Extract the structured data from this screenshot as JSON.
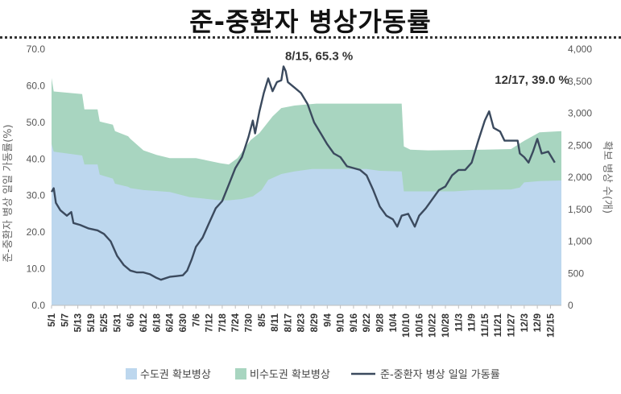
{
  "chart_data": {
    "type": "area",
    "title": "준-중환자 병상가동률",
    "ylabel_left": "준-중환자 병상 일일 가동률(%)",
    "ylabel_right": "확보 병상 수(개)",
    "ylim_left": [
      0,
      70
    ],
    "ylim_right": [
      0,
      4000
    ],
    "yticks_left": [
      "0.0",
      "10.0",
      "20.0",
      "30.0",
      "40.0",
      "50.0",
      "60.0",
      "70.0"
    ],
    "yticks_right": [
      "0",
      "500",
      "1,000",
      "1,500",
      "2,000",
      "2,500",
      "3,000",
      "3,500",
      "4,000"
    ],
    "x_start": "2021-05-01",
    "x_end": "2021-12-20",
    "x_tick_labels": [
      "5/1",
      "5/7",
      "5/13",
      "5/19",
      "5/25",
      "5/31",
      "6/6",
      "6/12",
      "6/18",
      "6/24",
      "6/30",
      "7/6",
      "7/12",
      "7/18",
      "7/24",
      "7/30",
      "8/5",
      "8/11",
      "8/17",
      "8/23",
      "8/29",
      "9/4",
      "9/10",
      "9/16",
      "9/22",
      "9/28",
      "10/4",
      "10/10",
      "10/16",
      "10/22",
      "10/28",
      "11/3",
      "11/9",
      "11/15",
      "11/21",
      "11/27",
      "12/3",
      "12/9",
      "12/15"
    ],
    "grid": false,
    "legend_position": "bottom",
    "series": [
      {
        "name": "수도권 확보병상",
        "kind": "stacked-area",
        "axis": "right",
        "color": "#bdd7ee",
        "points": [
          [
            "5/1",
            2520
          ],
          [
            "5/2",
            2400
          ],
          [
            "5/15",
            2340
          ],
          [
            "5/16",
            2200
          ],
          [
            "5/22",
            2200
          ],
          [
            "5/23",
            2040
          ],
          [
            "5/29",
            1980
          ],
          [
            "5/30",
            1900
          ],
          [
            "6/5",
            1850
          ],
          [
            "6/6",
            1830
          ],
          [
            "6/12",
            1800
          ],
          [
            "6/24",
            1770
          ],
          [
            "7/3",
            1690
          ],
          [
            "7/17",
            1640
          ],
          [
            "7/21",
            1640
          ],
          [
            "7/27",
            1660
          ],
          [
            "8/1",
            1700
          ],
          [
            "8/5",
            1800
          ],
          [
            "8/8",
            1960
          ],
          [
            "8/14",
            2050
          ],
          [
            "8/20",
            2090
          ],
          [
            "8/28",
            2130
          ],
          [
            "9/22",
            2130
          ],
          [
            "9/28",
            2100
          ],
          [
            "10/8",
            2090
          ],
          [
            "10/9",
            1780
          ],
          [
            "10/20",
            1780
          ],
          [
            "11/1",
            1780
          ],
          [
            "11/10",
            1800
          ],
          [
            "11/27",
            1810
          ],
          [
            "12/1",
            1840
          ],
          [
            "12/3",
            1920
          ],
          [
            "12/10",
            1940
          ],
          [
            "12/20",
            1950
          ]
        ]
      },
      {
        "name": "비수도권 확보병상",
        "kind": "stacked-area-top",
        "axis": "right",
        "color": "#a8d5c0",
        "points": [
          [
            "5/1",
            3550
          ],
          [
            "5/2",
            3340
          ],
          [
            "5/15",
            3300
          ],
          [
            "5/16",
            3060
          ],
          [
            "5/22",
            3060
          ],
          [
            "5/23",
            2870
          ],
          [
            "5/29",
            2820
          ],
          [
            "5/30",
            2720
          ],
          [
            "6/5",
            2640
          ],
          [
            "6/6",
            2600
          ],
          [
            "6/12",
            2420
          ],
          [
            "6/18",
            2350
          ],
          [
            "6/24",
            2300
          ],
          [
            "7/6",
            2300
          ],
          [
            "7/17",
            2220
          ],
          [
            "7/21",
            2200
          ],
          [
            "7/25",
            2300
          ],
          [
            "7/31",
            2580
          ],
          [
            "8/4",
            2690
          ],
          [
            "8/10",
            2950
          ],
          [
            "8/14",
            3080
          ],
          [
            "8/20",
            3120
          ],
          [
            "8/30",
            3150
          ],
          [
            "9/25",
            3150
          ],
          [
            "10/8",
            3150
          ],
          [
            "10/9",
            2480
          ],
          [
            "10/12",
            2430
          ],
          [
            "10/20",
            2420
          ],
          [
            "11/15",
            2430
          ],
          [
            "11/27",
            2440
          ],
          [
            "12/3",
            2570
          ],
          [
            "12/10",
            2700
          ],
          [
            "12/20",
            2720
          ]
        ]
      },
      {
        "name": "준-중환자 병상 일일 가동률",
        "kind": "line",
        "axis": "left",
        "color": "#3b4a5e",
        "points": [
          [
            "5/1",
            31.0
          ],
          [
            "5/2",
            32.0
          ],
          [
            "5/3",
            28.0
          ],
          [
            "5/5",
            26.0
          ],
          [
            "5/8",
            24.5
          ],
          [
            "5/10",
            25.5
          ],
          [
            "5/11",
            22.5
          ],
          [
            "5/14",
            22.0
          ],
          [
            "5/18",
            21.0
          ],
          [
            "5/22",
            20.5
          ],
          [
            "5/25",
            19.5
          ],
          [
            "5/28",
            17.5
          ],
          [
            "5/31",
            13.5
          ],
          [
            "6/3",
            11.0
          ],
          [
            "6/6",
            9.5
          ],
          [
            "6/9",
            9.0
          ],
          [
            "6/12",
            9.0
          ],
          [
            "6/15",
            8.5
          ],
          [
            "6/18",
            7.5
          ],
          [
            "6/20",
            7.0
          ],
          [
            "6/24",
            7.8
          ],
          [
            "6/27",
            8.0
          ],
          [
            "6/30",
            8.2
          ],
          [
            "7/2",
            9.5
          ],
          [
            "7/4",
            12.5
          ],
          [
            "7/6",
            16.0
          ],
          [
            "7/9",
            18.5
          ],
          [
            "7/12",
            22.5
          ],
          [
            "7/15",
            26.5
          ],
          [
            "7/18",
            28.5
          ],
          [
            "7/21",
            33.0
          ],
          [
            "7/24",
            37.5
          ],
          [
            "7/27",
            40.5
          ],
          [
            "7/30",
            46.0
          ],
          [
            "8/1",
            50.5
          ],
          [
            "8/2",
            47.0
          ],
          [
            "8/4",
            53.0
          ],
          [
            "8/6",
            58.0
          ],
          [
            "8/8",
            62.0
          ],
          [
            "8/10",
            58.5
          ],
          [
            "8/12",
            61.0
          ],
          [
            "8/14",
            61.5
          ],
          [
            "8/15",
            65.3
          ],
          [
            "8/16",
            64.0
          ],
          [
            "8/17",
            61.0
          ],
          [
            "8/20",
            59.5
          ],
          [
            "8/23",
            58.0
          ],
          [
            "8/26",
            55.0
          ],
          [
            "8/29",
            50.0
          ],
          [
            "9/1",
            47.0
          ],
          [
            "9/4",
            44.0
          ],
          [
            "9/7",
            41.5
          ],
          [
            "9/10",
            40.5
          ],
          [
            "9/13",
            38.0
          ],
          [
            "9/16",
            37.5
          ],
          [
            "9/19",
            37.0
          ],
          [
            "9/22",
            35.5
          ],
          [
            "9/25",
            31.5
          ],
          [
            "9/28",
            27.0
          ],
          [
            "10/1",
            24.5
          ],
          [
            "10/4",
            23.5
          ],
          [
            "10/6",
            21.5
          ],
          [
            "10/8",
            24.5
          ],
          [
            "10/11",
            25.0
          ],
          [
            "10/14",
            21.5
          ],
          [
            "10/16",
            24.5
          ],
          [
            "10/19",
            26.5
          ],
          [
            "10/22",
            29.0
          ],
          [
            "10/25",
            31.5
          ],
          [
            "10/28",
            32.5
          ],
          [
            "10/31",
            35.5
          ],
          [
            "11/3",
            37.0
          ],
          [
            "11/6",
            37.0
          ],
          [
            "11/9",
            39.0
          ],
          [
            "11/12",
            45.0
          ],
          [
            "11/15",
            50.5
          ],
          [
            "11/17",
            53.0
          ],
          [
            "11/19",
            48.5
          ],
          [
            "11/22",
            47.5
          ],
          [
            "11/24",
            45.0
          ],
          [
            "11/27",
            45.0
          ],
          [
            "11/30",
            45.0
          ],
          [
            "12/1",
            41.5
          ],
          [
            "12/3",
            40.5
          ],
          [
            "12/5",
            39.0
          ],
          [
            "12/7",
            42.0
          ],
          [
            "12/9",
            45.5
          ],
          [
            "12/11",
            41.5
          ],
          [
            "12/14",
            42.0
          ],
          [
            "12/17",
            39.0
          ]
        ]
      }
    ],
    "annotations": [
      {
        "x": "8/15",
        "y": 65.3,
        "text": "8/15, 65.3 %"
      },
      {
        "x": "12/17",
        "y": 39.0,
        "text": "12/17, 39.0 %"
      }
    ]
  }
}
